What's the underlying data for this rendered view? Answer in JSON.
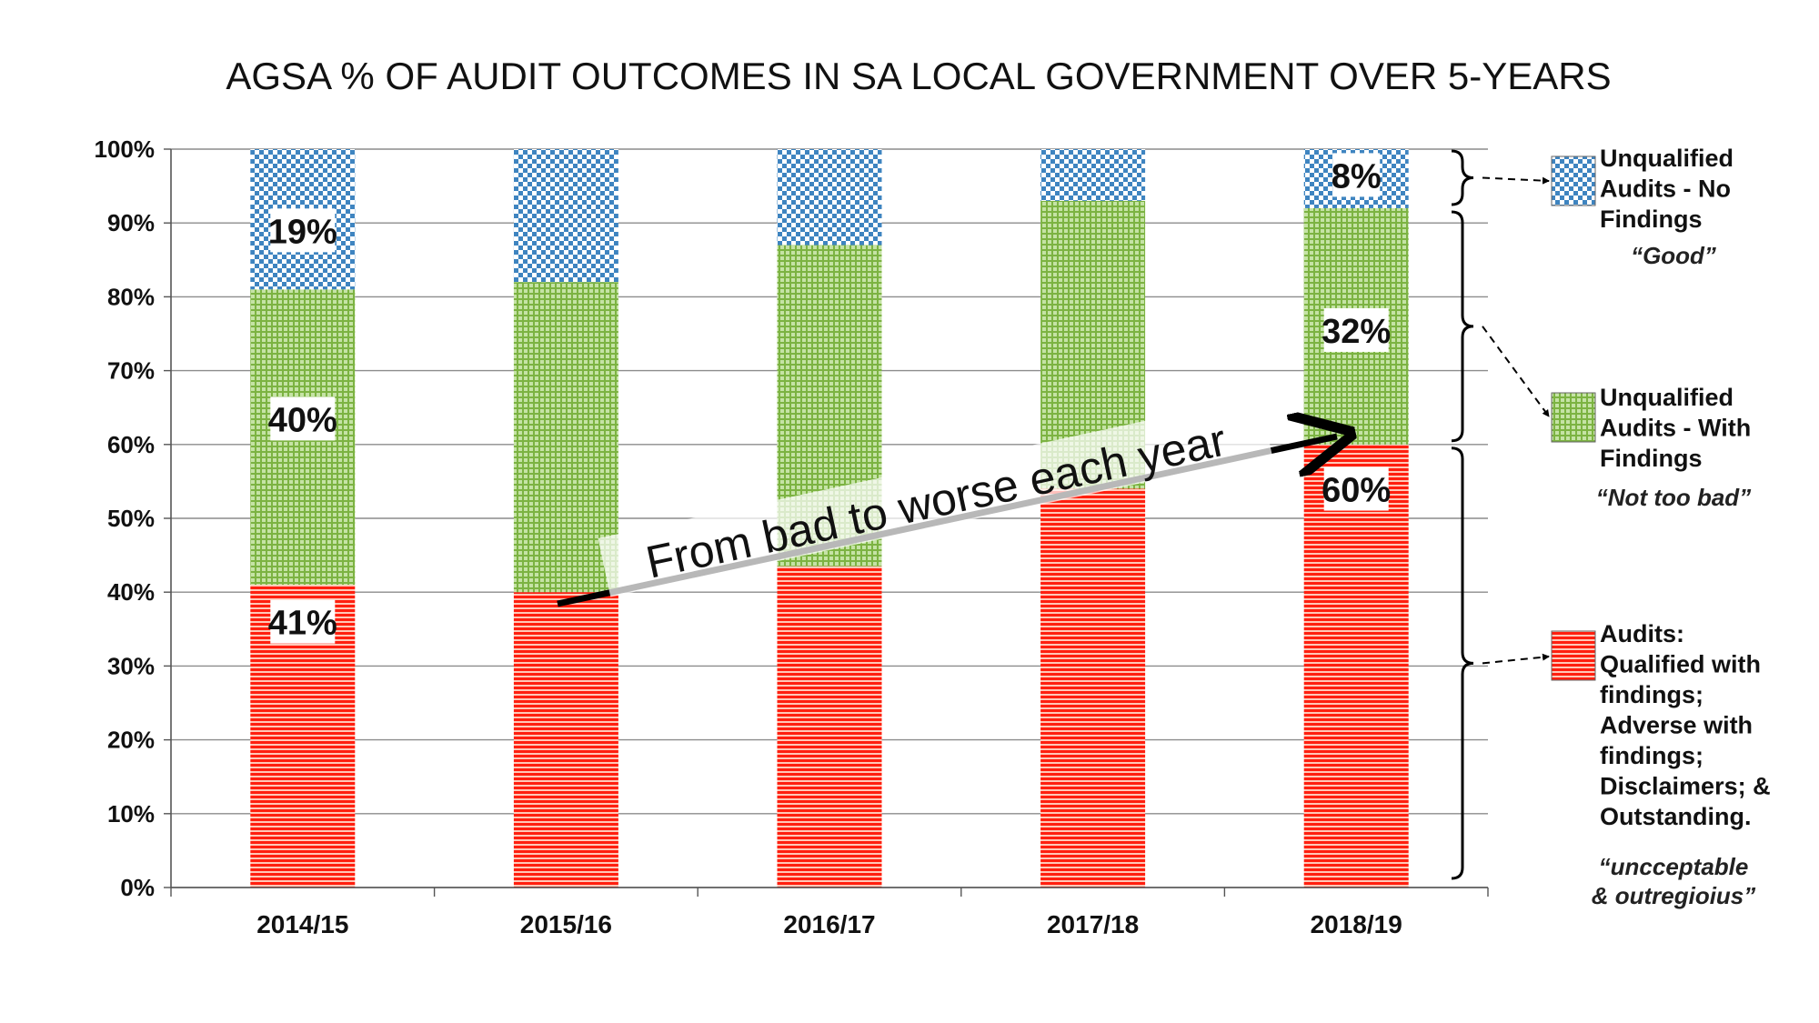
{
  "chart_data": {
    "type": "bar",
    "stacked": true,
    "title": "AGSA % OF AUDIT OUTCOMES IN SA LOCAL GOVERNMENT OVER 5-YEARS",
    "categories": [
      "2014/15",
      "2015/16",
      "2016/17",
      "2017/18",
      "2018/19"
    ],
    "yticks": [
      "0%",
      "10%",
      "20%",
      "30%",
      "40%",
      "50%",
      "60%",
      "70%",
      "80%",
      "90%",
      "100%"
    ],
    "ylim": [
      0,
      100
    ],
    "grid": true,
    "series": [
      {
        "key": "red",
        "values": [
          41,
          40,
          43.5,
          54,
          60
        ],
        "color": "#ff2a1a",
        "data_labels": [
          "41%",
          "",
          "",
          "",
          "60%"
        ],
        "legend_label": [
          "Audits:",
          "Qualified with",
          "findings;",
          "Adverse with",
          "findings;",
          "Disclaimers; &",
          "Outstanding."
        ],
        "legend_note": [
          "“uncceptable",
          "& outregioius”"
        ]
      },
      {
        "key": "green",
        "values": [
          40,
          42,
          43.5,
          39,
          32
        ],
        "color": "#8fc05a",
        "data_labels": [
          "40%",
          "",
          "",
          "",
          "32%"
        ],
        "legend_label": [
          "Unqualified",
          "Audits - With",
          "Findings"
        ],
        "legend_note": [
          "“Not too bad”"
        ]
      },
      {
        "key": "blue",
        "values": [
          19,
          18,
          13,
          7,
          8
        ],
        "color": "#4a8fc8",
        "data_labels": [
          "19%",
          "",
          "",
          "",
          "8%"
        ],
        "legend_label": [
          "Unqualified",
          "Audits - No",
          "Findings"
        ],
        "legend_note": [
          "“Good”"
        ]
      }
    ],
    "annotation": "From bad to worse each year"
  }
}
